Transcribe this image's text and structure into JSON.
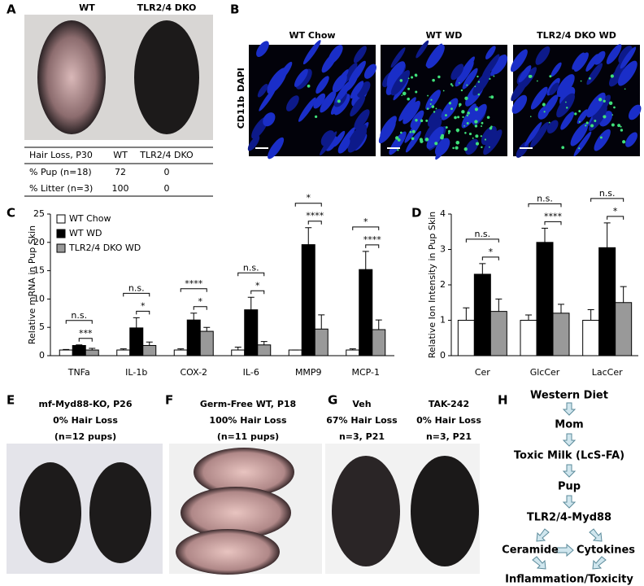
{
  "panel_labels": [
    "A",
    "B",
    "C",
    "D",
    "E",
    "F",
    "G",
    "H"
  ],
  "panel_a": {
    "photo_labels": [
      "WT",
      "TLR2/4 DKO"
    ],
    "table": {
      "header": [
        "Hair Loss, P30",
        "WT",
        "TLR2/4 DKO"
      ],
      "rows": [
        [
          "% Pup (n=18)",
          72,
          0
        ],
        [
          "% Litter (n=3)",
          100,
          0
        ]
      ]
    }
  },
  "panel_b": {
    "titles": [
      "WT Chow",
      "WT WD",
      "TLR2/4 DKO WD"
    ],
    "stain_labels": [
      "CD11b",
      "DAPI"
    ]
  },
  "chart_data": [
    {
      "type": "bar",
      "ylabel": "Relative mRNA in Pup Skin",
      "categories": [
        "TNFa",
        "IL-1b",
        "COX-2",
        "IL-6",
        "MMP9",
        "MCP-1"
      ],
      "series": [
        {
          "name": "WT Chow",
          "color": "#ffffff",
          "values": [
            1.0,
            1.0,
            1.0,
            1.0,
            1.0,
            1.0
          ],
          "errors": [
            0.1,
            0.2,
            0.2,
            0.5,
            0,
            0.2
          ]
        },
        {
          "name": "WT WD",
          "color": "#000000",
          "values": [
            1.8,
            4.9,
            6.3,
            8.1,
            19.6,
            15.2
          ],
          "errors": [
            0.1,
            1.8,
            1.2,
            2.2,
            3.0,
            3.2
          ]
        },
        {
          "name": "TLR2/4 DKO WD",
          "color": "#999999",
          "values": [
            1.0,
            1.8,
            4.3,
            1.9,
            4.7,
            4.6
          ],
          "errors": [
            0.3,
            0.6,
            0.7,
            0.6,
            2.5,
            1.7
          ]
        }
      ],
      "annotations": [
        [
          "n.s.",
          "***"
        ],
        [
          "n.s.",
          "*"
        ],
        [
          "****",
          "*"
        ],
        [
          "n.s.",
          "*"
        ],
        [
          "*",
          "****"
        ],
        [
          "*",
          "****"
        ]
      ],
      "ylim": [
        0,
        25
      ],
      "yticks": [
        0,
        5,
        10,
        15,
        20,
        25
      ],
      "legend": "upper left"
    },
    {
      "type": "bar",
      "ylabel": "Relative Ion Intensity in Pup Skin",
      "categories": [
        "Cer",
        "GlcCer",
        "LacCer"
      ],
      "series": [
        {
          "color": "#ffffff",
          "values": [
            1.0,
            1.0,
            1.0
          ],
          "errors": [
            0.35,
            0.15,
            0.3
          ]
        },
        {
          "color": "#000000",
          "values": [
            2.3,
            3.2,
            3.05
          ],
          "errors": [
            0.3,
            0.4,
            0.7
          ]
        },
        {
          "color": "#999999",
          "values": [
            1.25,
            1.2,
            1.5
          ],
          "errors": [
            0.35,
            0.25,
            0.45
          ]
        }
      ],
      "annotations": [
        [
          "n.s.",
          "*"
        ],
        [
          "n.s.",
          "****"
        ],
        [
          "n.s.",
          "*"
        ]
      ],
      "ylim": [
        0,
        4
      ],
      "yticks": [
        0,
        1,
        2,
        3,
        4
      ]
    }
  ],
  "panel_e": {
    "lines": [
      "mf-Myd88-KO, P26",
      "0% Hair Loss",
      "(n=12 pups)"
    ]
  },
  "panel_f": {
    "lines": [
      "Germ-Free WT, P18",
      "100% Hair Loss",
      "(n=11 pups)"
    ]
  },
  "panel_g": {
    "groups": [
      {
        "lines": [
          "Veh",
          "67% Hair  Loss",
          "n=3, P21"
        ]
      },
      {
        "lines": [
          "TAK-242",
          "0% Hair Loss",
          "n=3, P21"
        ]
      }
    ]
  },
  "panel_h": {
    "nodes": [
      "Western Diet",
      "Mom",
      "Toxic Milk (LcS-FA)",
      "Pup",
      "TLR2/4-Myd88",
      "Ceramide",
      "Cytokines",
      "Inflammation/Toxicity"
    ]
  }
}
